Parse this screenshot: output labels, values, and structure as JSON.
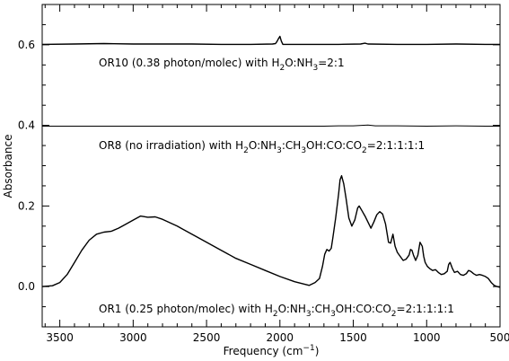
{
  "chart_data": {
    "type": "line",
    "xlabel": "Frequency (cm⁻¹)",
    "ylabel": "Absorbance",
    "xlim": [
      3620,
      500
    ],
    "ylim": [
      -0.1,
      0.7
    ],
    "x_ticks": [
      3500,
      3000,
      2500,
      2000,
      1500,
      1000,
      500
    ],
    "x_tick_labels": [
      "3500",
      "3000",
      "2500",
      "2000",
      "1500",
      "1000",
      "500"
    ],
    "y_ticks": [
      0.0,
      0.2,
      0.4,
      0.6
    ],
    "y_tick_labels": [
      "0.0",
      "0.2",
      "0.4",
      "0.6"
    ],
    "grid": false,
    "series": [
      {
        "label_parts": [
          {
            "t": "OR10 (0.38 photon/molec) with H"
          },
          {
            "t": "2",
            "sub": true
          },
          {
            "t": "O:NH"
          },
          {
            "t": "3",
            "sub": true
          },
          {
            "t": "=2:1"
          }
        ],
        "x": [
          3620,
          3400,
          3200,
          3000,
          2800,
          2600,
          2400,
          2200,
          2050,
          2030,
          2020,
          2010,
          2000,
          1990,
          1980,
          1800,
          1600,
          1450,
          1420,
          1400,
          1200,
          1000,
          800,
          600,
          500
        ],
        "y": [
          0.601,
          0.602,
          0.603,
          0.602,
          0.602,
          0.602,
          0.601,
          0.601,
          0.602,
          0.603,
          0.608,
          0.615,
          0.621,
          0.609,
          0.601,
          0.601,
          0.601,
          0.602,
          0.604,
          0.602,
          0.601,
          0.601,
          0.602,
          0.601,
          0.601
        ]
      },
      {
        "label_parts": [
          {
            "t": "OR8 (no irradiation) with H"
          },
          {
            "t": "2",
            "sub": true
          },
          {
            "t": "O:NH"
          },
          {
            "t": "3",
            "sub": true
          },
          {
            "t": ":CH"
          },
          {
            "t": "3",
            "sub": true
          },
          {
            "t": "OH:CO:CO"
          },
          {
            "t": "2",
            "sub": true
          },
          {
            "t": "=2:1:1:1:1"
          }
        ],
        "x": [
          3620,
          3200,
          2800,
          2400,
          2000,
          1700,
          1600,
          1500,
          1400,
          1350,
          1200,
          1000,
          800,
          600,
          500
        ],
        "y": [
          0.398,
          0.398,
          0.398,
          0.398,
          0.398,
          0.398,
          0.399,
          0.399,
          0.401,
          0.399,
          0.399,
          0.398,
          0.399,
          0.398,
          0.398
        ]
      },
      {
        "label_parts": [
          {
            "t": "OR1 (0.25 photon/molec) with H"
          },
          {
            "t": "2",
            "sub": true
          },
          {
            "t": "O:NH"
          },
          {
            "t": "3",
            "sub": true
          },
          {
            "t": ":CH"
          },
          {
            "t": "3",
            "sub": true
          },
          {
            "t": "OH:CO:CO"
          },
          {
            "t": "2",
            "sub": true
          },
          {
            "t": "=2:1:1:1:1"
          }
        ],
        "x": [
          3620,
          3550,
          3500,
          3450,
          3400,
          3350,
          3300,
          3250,
          3200,
          3150,
          3100,
          3050,
          3000,
          2950,
          2900,
          2850,
          2800,
          2700,
          2600,
          2500,
          2400,
          2300,
          2200,
          2100,
          2000,
          1900,
          1800,
          1760,
          1730,
          1710,
          1695,
          1680,
          1665,
          1650,
          1640,
          1620,
          1600,
          1590,
          1580,
          1565,
          1550,
          1530,
          1510,
          1490,
          1470,
          1460,
          1440,
          1420,
          1400,
          1380,
          1360,
          1340,
          1320,
          1300,
          1280,
          1260,
          1245,
          1230,
          1215,
          1200,
          1180,
          1160,
          1140,
          1120,
          1110,
          1100,
          1090,
          1075,
          1060,
          1045,
          1030,
          1020,
          1010,
          995,
          980,
          960,
          940,
          920,
          900,
          880,
          860,
          850,
          840,
          825,
          810,
          790,
          770,
          750,
          730,
          715,
          700,
          680,
          660,
          640,
          620,
          600,
          580,
          560,
          540,
          520,
          500
        ],
        "y": [
          0.0,
          0.002,
          0.01,
          0.03,
          0.06,
          0.09,
          0.115,
          0.13,
          0.135,
          0.137,
          0.145,
          0.155,
          0.165,
          0.175,
          0.172,
          0.173,
          0.167,
          0.15,
          0.13,
          0.11,
          0.09,
          0.07,
          0.055,
          0.04,
          0.025,
          0.012,
          0.003,
          0.01,
          0.02,
          0.05,
          0.08,
          0.092,
          0.088,
          0.095,
          0.12,
          0.17,
          0.23,
          0.265,
          0.275,
          0.255,
          0.22,
          0.17,
          0.15,
          0.165,
          0.195,
          0.2,
          0.188,
          0.175,
          0.16,
          0.145,
          0.16,
          0.178,
          0.186,
          0.18,
          0.155,
          0.11,
          0.108,
          0.13,
          0.1,
          0.085,
          0.075,
          0.065,
          0.068,
          0.078,
          0.092,
          0.09,
          0.078,
          0.065,
          0.078,
          0.11,
          0.1,
          0.075,
          0.06,
          0.05,
          0.045,
          0.04,
          0.042,
          0.035,
          0.03,
          0.032,
          0.038,
          0.055,
          0.06,
          0.045,
          0.035,
          0.038,
          0.03,
          0.028,
          0.032,
          0.04,
          0.038,
          0.032,
          0.028,
          0.03,
          0.028,
          0.025,
          0.02,
          0.01,
          0.003,
          0.0,
          -0.002
        ]
      }
    ]
  }
}
